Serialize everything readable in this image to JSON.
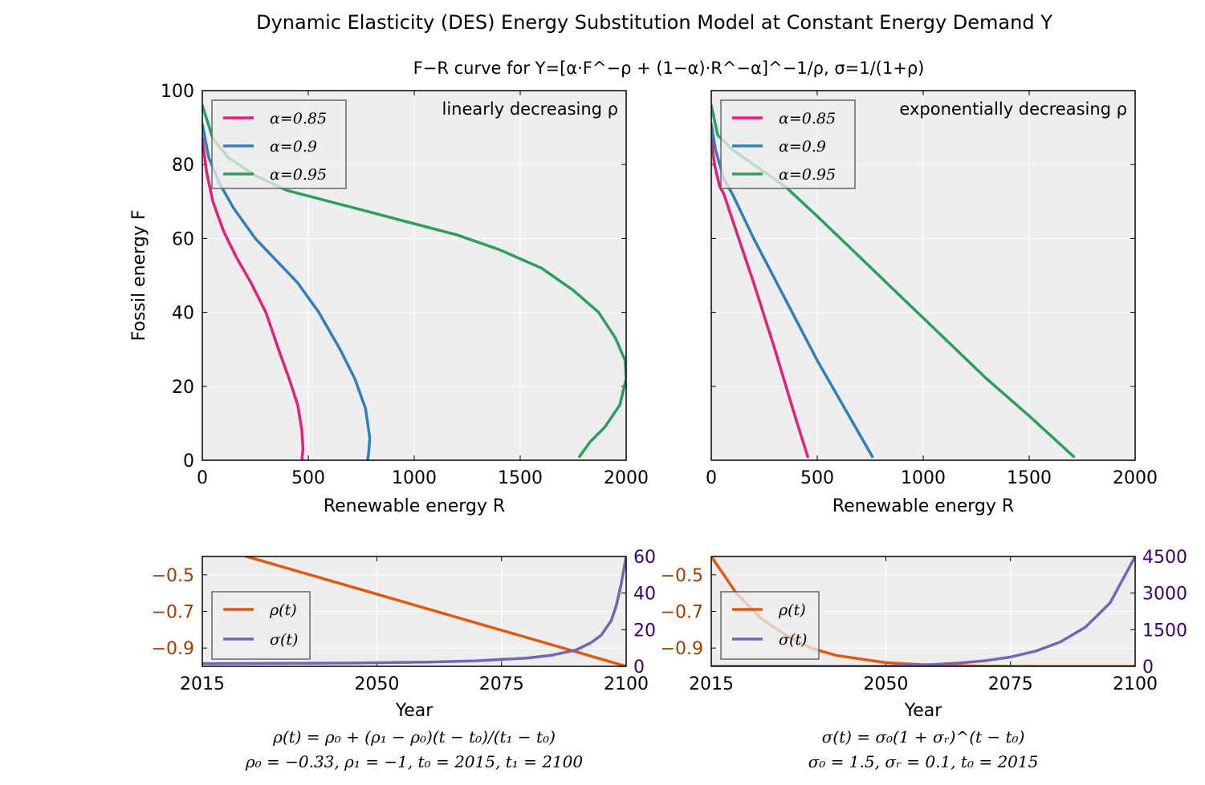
{
  "figure": {
    "title": "Dynamic Elasticity (DES) Energy Substitution Model at Constant Energy Demand Y",
    "subtitle": "F−R curve for Y=[α·F^−ρ + (1−α)·R^−α]^−1/ρ,  σ=1/(1+ρ)"
  },
  "colors": {
    "alpha_0_85": "#e0217a",
    "alpha_0_9": "#2f7fbd",
    "alpha_0_95": "#2aa05a",
    "rho": "#e0590f",
    "sigma": "#7566b5",
    "rho_axis": "#a13c00",
    "sigma_axis": "#3d0076",
    "plot_background": "#eeeeee"
  },
  "chart_data": [
    {
      "id": "top-left",
      "type": "line",
      "annotation": "linearly decreasing ρ",
      "xlabel": "Renewable energy R",
      "ylabel": "Fossil energy F",
      "xlim": [
        0,
        2000
      ],
      "ylim": [
        0,
        100
      ],
      "xticks": [
        "0",
        "500",
        "1000",
        "1500",
        "2000"
      ],
      "yticks": [
        "0",
        "20",
        "40",
        "60",
        "80",
        "100"
      ],
      "grid": true,
      "legend": "top-left",
      "series": [
        {
          "name": "α=0.85",
          "color_key": "alpha_0_85",
          "x": [
            0,
            20,
            50,
            100,
            160,
            230,
            300,
            360,
            410,
            450,
            470,
            475,
            470
          ],
          "y": [
            87,
            78,
            70,
            62,
            55,
            48,
            40,
            30,
            22,
            15,
            8,
            3,
            0
          ]
        },
        {
          "name": "α=0.9",
          "color_key": "alpha_0_9",
          "x": [
            0,
            30,
            80,
            150,
            250,
            350,
            450,
            550,
            650,
            720,
            770,
            790,
            785,
            780
          ],
          "y": [
            91,
            82,
            75,
            68,
            60,
            54,
            48,
            40,
            30,
            22,
            14,
            6,
            2,
            0
          ]
        },
        {
          "name": "α=0.95",
          "color_key": "alpha_0_95",
          "x": [
            0,
            50,
            120,
            250,
            400,
            600,
            800,
            1000,
            1200,
            1400,
            1600,
            1750,
            1870,
            1950,
            1995,
            2000,
            1970,
            1900,
            1830,
            1780
          ],
          "y": [
            96,
            87,
            82,
            77,
            73,
            70,
            67,
            64,
            61,
            57,
            52,
            46,
            40,
            33,
            27,
            22,
            15,
            9,
            5,
            1
          ]
        }
      ]
    },
    {
      "id": "top-right",
      "type": "line",
      "annotation": "exponentially decreasing ρ",
      "xlabel": "Renewable energy R",
      "xlim": [
        0,
        2000
      ],
      "ylim": [
        0,
        100
      ],
      "xticks": [
        "0",
        "500",
        "1000",
        "1500",
        "2000"
      ],
      "grid": true,
      "legend": "top-left",
      "series": [
        {
          "name": "α=0.85",
          "color_key": "alpha_0_85",
          "x": [
            0,
            15,
            40,
            60,
            100,
            200,
            300,
            400,
            455
          ],
          "y": [
            87,
            80,
            74,
            72,
            65,
            48,
            30,
            11,
            1
          ]
        },
        {
          "name": "α=0.9",
          "color_key": "alpha_0_9",
          "x": [
            0,
            20,
            60,
            100,
            200,
            300,
            400,
            500,
            600,
            700,
            760
          ],
          "y": [
            91,
            84,
            76,
            72,
            60,
            49,
            38,
            27,
            17,
            7,
            1
          ]
        },
        {
          "name": "α=0.95",
          "color_key": "alpha_0_95",
          "x": [
            0,
            30,
            100,
            200,
            350,
            500,
            700,
            900,
            1100,
            1300,
            1500,
            1710
          ],
          "y": [
            96,
            88,
            84,
            80,
            74,
            66,
            55,
            44,
            33,
            22,
            12,
            1
          ]
        }
      ]
    },
    {
      "id": "bottom-left",
      "type": "line",
      "xlabel": "Year",
      "xlim": [
        2015,
        2100
      ],
      "xticks": [
        "2015",
        "2050",
        "2075",
        "2100"
      ],
      "ylim_left": [
        -1.0,
        -0.4
      ],
      "yticks_left": [
        "−0.5",
        "−0.7",
        "−0.9"
      ],
      "ylim_right": [
        0,
        60
      ],
      "yticks_right": [
        "60",
        "40",
        "20",
        "0"
      ],
      "grid": true,
      "legend": "bottom-left",
      "caption_line1": "ρ(t) = ρ₀ + (ρ₁ − ρ₀)(t − t₀)/(t₁ − t₀)",
      "caption_line2": "ρ₀ = −0.33,  ρ₁ = −1,  t₀ = 2015,  t₁ = 2100",
      "series": [
        {
          "name": "ρ(t)",
          "color_key": "rho",
          "axis": "left",
          "x": [
            2015,
            2100
          ],
          "y": [
            -0.33,
            -1.0
          ]
        },
        {
          "name": "σ(t)",
          "color_key": "sigma",
          "axis": "right",
          "x": [
            2015,
            2030,
            2045,
            2060,
            2070,
            2080,
            2085,
            2090,
            2093,
            2095,
            2097,
            2098,
            2099,
            2100
          ],
          "y": [
            1.5,
            1.6,
            1.8,
            2.3,
            3.0,
            4.5,
            6,
            9,
            13,
            17,
            25,
            33,
            45,
            60
          ]
        }
      ]
    },
    {
      "id": "bottom-right",
      "type": "line",
      "xlabel": "Year",
      "xlim": [
        2015,
        2100
      ],
      "xticks": [
        "2015",
        "2050",
        "2075",
        "2100"
      ],
      "ylim_left": [
        -1.0,
        -0.4
      ],
      "yticks_left": [
        "−0.5",
        "−0.7",
        "−0.9"
      ],
      "ylim_right": [
        0,
        4500
      ],
      "yticks_right": [
        "4500",
        "3000",
        "1500",
        "0"
      ],
      "grid": true,
      "legend": "bottom-left",
      "caption_line1": "σ(t) = σ₀(1 + σᵣ)^(t − t₀)",
      "caption_line2": "σ₀ = 1.5,  σᵣ = 0.1,  t₀ = 2015",
      "series": [
        {
          "name": "ρ(t)",
          "color_key": "rho",
          "axis": "left",
          "x": [
            2015,
            2020,
            2025,
            2030,
            2035,
            2040,
            2045,
            2050,
            2060,
            2070,
            2080,
            2100
          ],
          "y": [
            -0.4,
            -0.6,
            -0.74,
            -0.83,
            -0.9,
            -0.94,
            -0.96,
            -0.98,
            -0.995,
            -0.999,
            -1.0,
            -1.0
          ]
        },
        {
          "name": "σ(t)",
          "color_key": "sigma",
          "axis": "right",
          "x": [
            2015,
            2050,
            2055,
            2060,
            2065,
            2070,
            2075,
            2080,
            2085,
            2090,
            2095,
            2100
          ],
          "y": [
            0,
            0,
            40,
            80,
            140,
            230,
            380,
            620,
            1000,
            1600,
            2600,
            4500
          ]
        }
      ]
    }
  ]
}
